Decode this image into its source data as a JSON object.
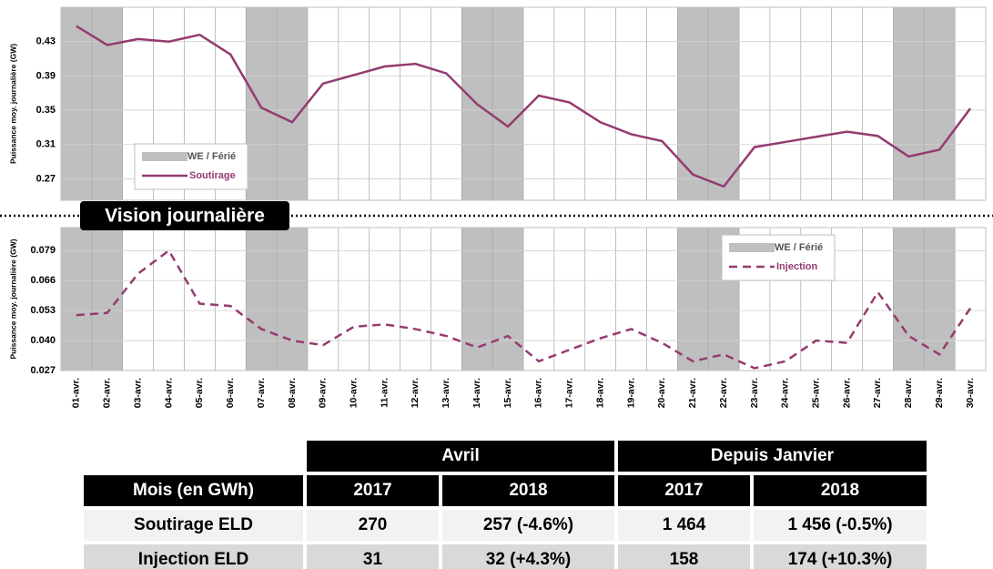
{
  "chart_data": [
    {
      "type": "line",
      "y_label": "Puissance moy. journalière  (GW)",
      "categories": [
        "01-avr.",
        "02-avr.",
        "03-avr.",
        "04-avr.",
        "05-avr.",
        "06-avr.",
        "07-avr.",
        "08-avr.",
        "09-avr.",
        "10-avr.",
        "11-avr.",
        "12-avr.",
        "13-avr.",
        "14-avr.",
        "15-avr.",
        "16-avr.",
        "17-avr.",
        "18-avr.",
        "19-avr.",
        "20-avr.",
        "21-avr.",
        "22-avr.",
        "23-avr.",
        "24-avr.",
        "25-avr.",
        "26-avr.",
        "27-avr.",
        "28-avr.",
        "29-avr.",
        "30-avr."
      ],
      "highlight": {
        "name": "WE / Férié",
        "color": "#bfbfbf",
        "categories": [
          "01-avr.",
          "02-avr.",
          "07-avr.",
          "08-avr.",
          "14-avr.",
          "15-avr.",
          "21-avr.",
          "22-avr.",
          "28-avr.",
          "29-avr."
        ]
      },
      "series": [
        {
          "name": "Soutirage",
          "color": "#953b70",
          "dash": false,
          "values": [
            0.448,
            0.426,
            0.433,
            0.43,
            0.438,
            0.415,
            0.353,
            0.336,
            0.381,
            0.391,
            0.401,
            0.404,
            0.393,
            0.357,
            0.331,
            0.367,
            0.359,
            0.336,
            0.322,
            0.314,
            0.275,
            0.261,
            0.307,
            0.313,
            0.319,
            0.325,
            0.32,
            0.296,
            0.304,
            0.352
          ]
        }
      ],
      "ylim": [
        0.245,
        0.47
      ],
      "yticks": [
        0.27,
        0.31,
        0.35,
        0.39,
        0.43
      ],
      "grid": true,
      "legend": "lower left"
    },
    {
      "type": "line",
      "y_label": "Puissance moy. journalière  (GW)",
      "categories": [
        "01-avr.",
        "02-avr.",
        "03-avr.",
        "04-avr.",
        "05-avr.",
        "06-avr.",
        "07-avr.",
        "08-avr.",
        "09-avr.",
        "10-avr.",
        "11-avr.",
        "12-avr.",
        "13-avr.",
        "14-avr.",
        "15-avr.",
        "16-avr.",
        "17-avr.",
        "18-avr.",
        "19-avr.",
        "20-avr.",
        "21-avr.",
        "22-avr.",
        "23-avr.",
        "24-avr.",
        "25-avr.",
        "26-avr.",
        "27-avr.",
        "28-avr.",
        "29-avr.",
        "30-avr."
      ],
      "highlight": {
        "name": "WE / Férié",
        "color": "#bfbfbf",
        "categories": [
          "01-avr.",
          "02-avr.",
          "07-avr.",
          "08-avr.",
          "14-avr.",
          "15-avr.",
          "21-avr.",
          "22-avr.",
          "28-avr.",
          "29-avr."
        ]
      },
      "series": [
        {
          "name": "Injection",
          "color": "#953b70",
          "dash": true,
          "values": [
            0.051,
            0.052,
            0.069,
            0.079,
            0.056,
            0.055,
            0.045,
            0.04,
            0.038,
            0.046,
            0.047,
            0.045,
            0.042,
            0.037,
            0.042,
            0.031,
            0.036,
            0.041,
            0.045,
            0.039,
            0.031,
            0.034,
            0.028,
            0.031,
            0.04,
            0.039,
            0.061,
            0.042,
            0.034,
            0.054
          ]
        }
      ],
      "ylim": [
        0.027,
        0.089
      ],
      "yticks": [
        {
          "value": 0.027,
          "label": "0.027"
        },
        {
          "value": 0.04,
          "label": "0.040"
        },
        {
          "value": 0.053,
          "label": "0.053"
        },
        {
          "value": 0.066,
          "label": "0.066"
        },
        {
          "value": 0.079,
          "label": "0.079"
        }
      ],
      "grid": true,
      "legend": "upper right",
      "show_categories": true
    }
  ],
  "banner": "Vision journalière",
  "table": {
    "groups": [
      "Avril",
      "Depuis Janvier"
    ],
    "header": [
      "Mois (en GWh)",
      "2017",
      "2018",
      "2017",
      "2018"
    ],
    "rows": [
      [
        "Soutirage ELD",
        "270",
        "257 (-4.6%)",
        "1 464",
        "1 456 (-0.5%)"
      ],
      [
        "Injection ELD",
        "31",
        "32 (+4.3%)",
        "158",
        "174 (+10.3%)"
      ]
    ]
  }
}
